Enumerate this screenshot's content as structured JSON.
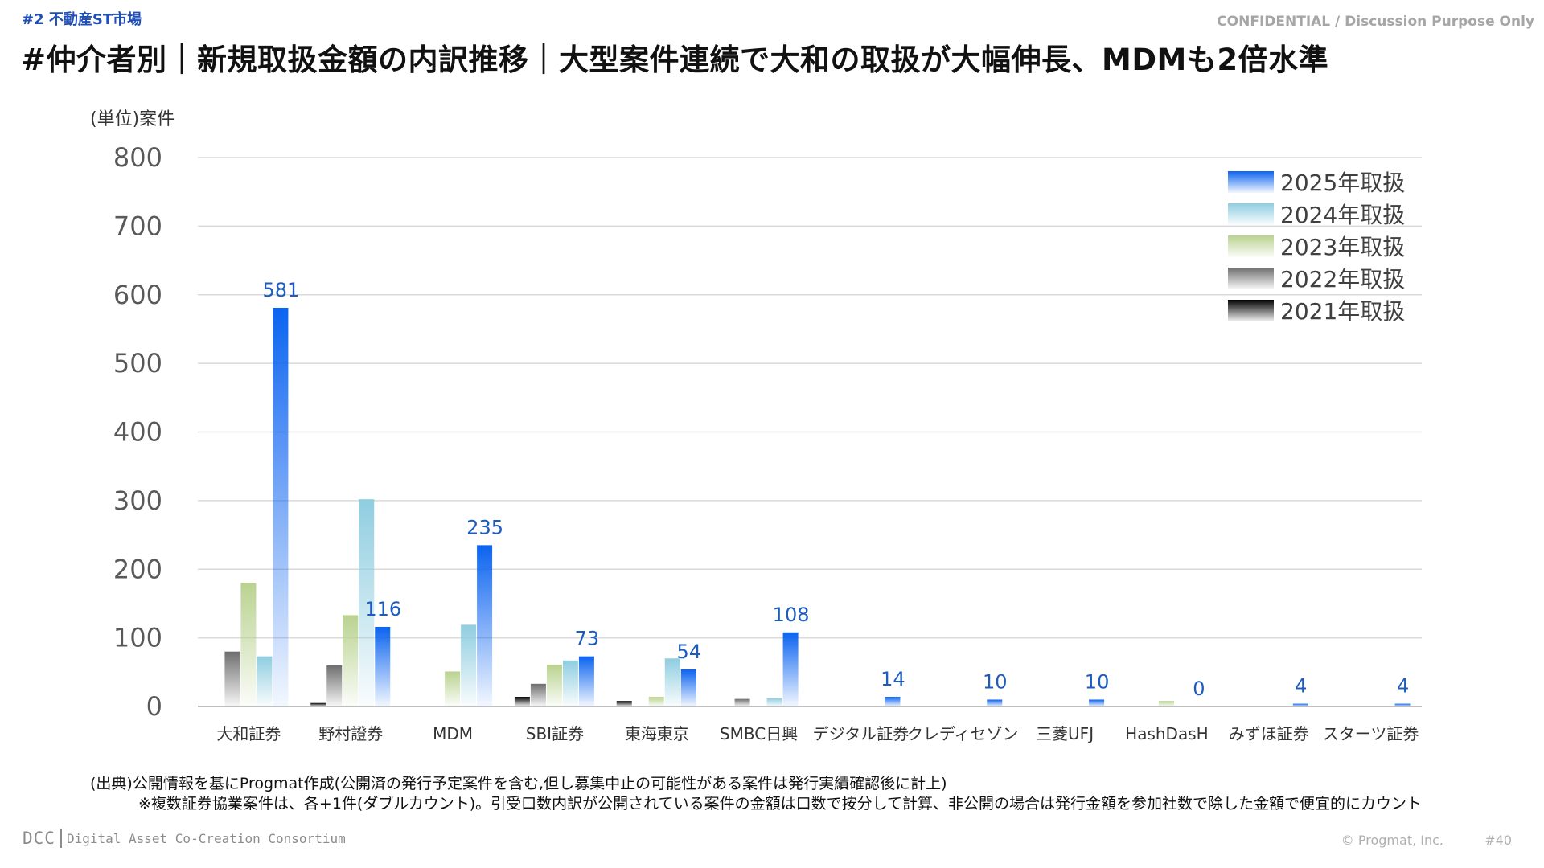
{
  "header": {
    "section_tag": "#2 不動産ST市場",
    "confidential": "CONFIDENTIAL / Discussion Purpose Only",
    "title": "#仲介者別｜新規取扱金額の内訳推移｜大型案件連続で大和の取扱が大幅伸長、MDMも2倍水準"
  },
  "footer": {
    "source_line1": "(出典)公開情報を基にProgmat作成(公開済の発行予定案件を含む,但し募集中止の可能性がある案件は発行実績確認後に計上)",
    "source_line2": "※複数証券協業案件は、各+1件(ダブルカウント)。引受口数内訳が公開されている案件の金額は口数で按分して計算、非公開の場合は発行金額を参加社数で除した金額で便宜的にカウント",
    "logo_mark": "DCC",
    "logo_text": "Digital Asset Co-Creation Consortium",
    "copyright": "© Progmat, Inc.",
    "page_number": "#40"
  },
  "chart_data": {
    "type": "bar",
    "title": "",
    "ylabel": "(単位)案件",
    "xlabel": "",
    "ylim": [
      0,
      800
    ],
    "yticks": [
      0,
      100,
      200,
      300,
      400,
      500,
      600,
      700,
      800
    ],
    "grid": true,
    "legend_position": "top-right",
    "categories": [
      "大和証券",
      "野村證券",
      "MDM",
      "SBI証券",
      "東海東京",
      "SMBC日興",
      "デジタル証券",
      "クレディセゾン",
      "三菱UFJ",
      "HashDasH",
      "みずほ証券",
      "スターツ証券"
    ],
    "series": [
      {
        "name": "2021年取扱",
        "color": "#000000",
        "values": [
          0,
          5,
          0,
          14,
          8,
          0,
          0,
          0,
          0,
          0,
          0,
          0
        ]
      },
      {
        "name": "2022年取扱",
        "color": "#6e6e6e",
        "values": [
          80,
          60,
          0,
          33,
          0,
          11,
          0,
          0,
          0,
          0,
          0,
          0
        ]
      },
      {
        "name": "2023年取扱",
        "color": "#b9d28f",
        "values": [
          180,
          133,
          51,
          61,
          14,
          0,
          0,
          0,
          0,
          8,
          0,
          0
        ]
      },
      {
        "name": "2024年取扱",
        "color": "#8fcde0",
        "values": [
          73,
          302,
          119,
          67,
          70,
          12,
          0,
          0,
          0,
          0,
          0,
          0
        ]
      },
      {
        "name": "2025年取扱",
        "color": "#0b63f0",
        "values": [
          581,
          116,
          235,
          73,
          54,
          108,
          14,
          10,
          10,
          0,
          4,
          4
        ]
      }
    ],
    "data_labels_series": "2025年取扱",
    "data_labels": [
      "581",
      "116",
      "235",
      "73",
      "54",
      "108",
      "14",
      "10",
      "10",
      "0",
      "4",
      "4"
    ]
  }
}
